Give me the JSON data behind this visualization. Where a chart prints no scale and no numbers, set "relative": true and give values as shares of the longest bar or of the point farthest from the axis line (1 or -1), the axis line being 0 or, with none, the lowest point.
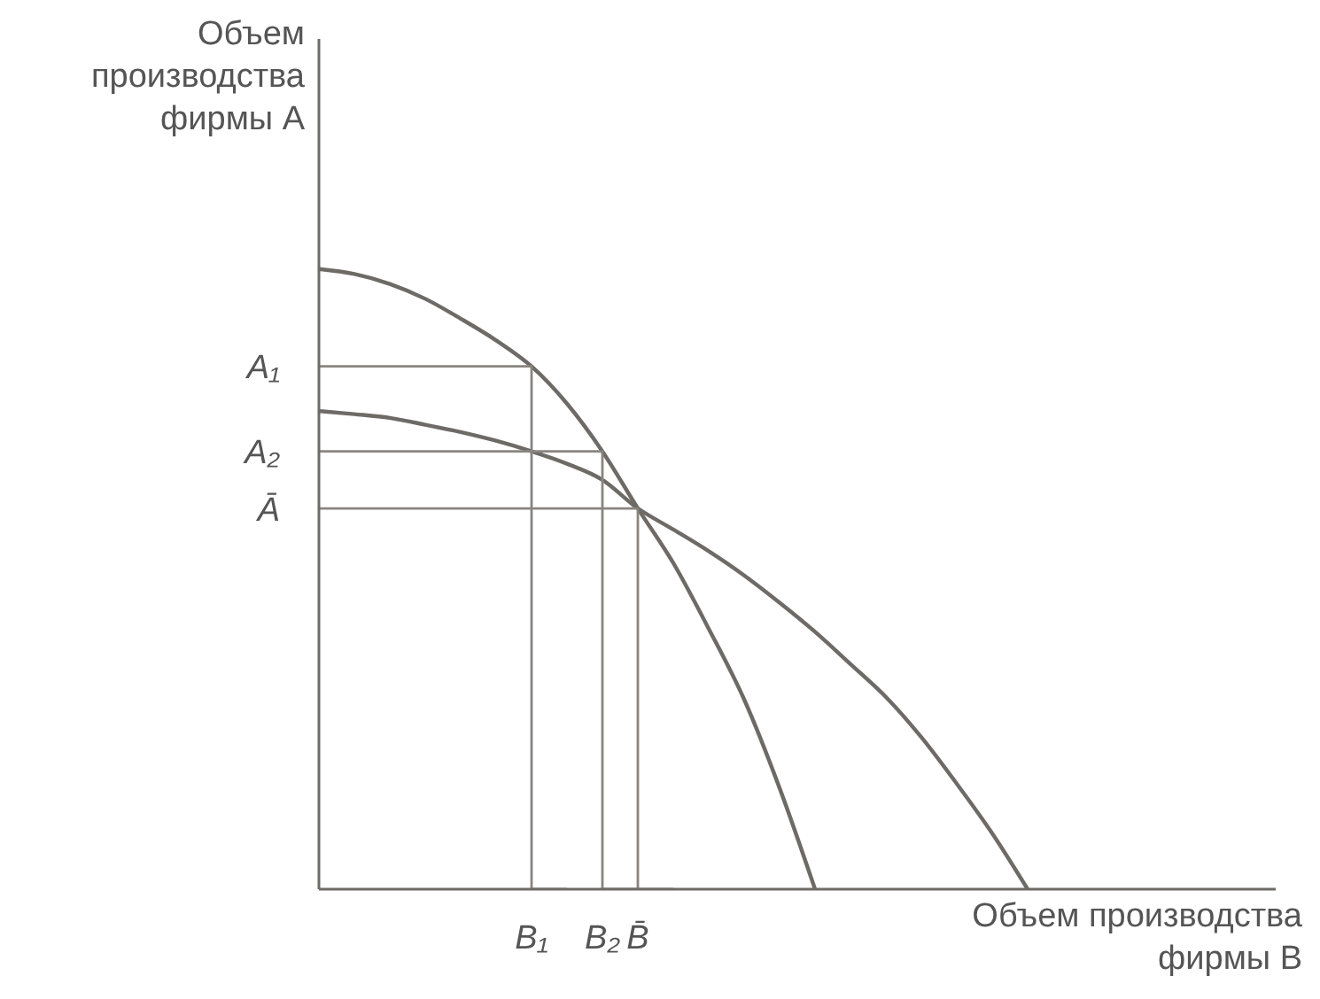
{
  "chart_data": {
    "type": "line",
    "relative": true,
    "xlabel": "Объем производства фирмы B",
    "ylabel": "Объем производства фирмы A",
    "categories": [
      null,
      null,
      null,
      null,
      null,
      null,
      "B₁",
      null,
      "B₂",
      "B̄",
      null,
      null,
      null,
      null,
      null,
      null,
      null,
      null,
      null,
      null,
      null,
      null,
      null,
      null,
      null,
      null,
      null,
      null
    ],
    "annotations": [
      "A₁",
      "A₂",
      "Ā"
    ],
    "grid": false,
    "legend": false,
    "marker": "none",
    "line_style": "solid",
    "series": [
      {
        "color": "#6e6a66",
        "values": [
          1,
          0.992,
          0.976,
          0.952,
          0.92,
          0.885,
          0.843,
          0.783,
          0.706,
          0.614,
          0.526,
          0.42,
          0.306,
          0.163,
          0,
          null,
          null,
          null,
          null,
          null,
          null,
          null,
          null,
          null,
          null,
          null,
          null,
          null
        ]
      },
      {
        "color": "#6e6a66",
        "values": [
          0.771,
          0.766,
          0.76,
          0.749,
          0.737,
          0.723,
          0.706,
          0.686,
          0.66,
          0.614,
          0.58,
          0.545,
          0.506,
          0.462,
          0.415,
          0.363,
          0.31,
          0.245,
          0.17,
          0.09,
          0,
          null,
          null,
          null,
          null,
          null,
          null,
          null
        ]
      },
      {
        "type": "step",
        "color": "#8a8580",
        "values": [
          0.843,
          0.843,
          0.843,
          0.843,
          0.843,
          0.843,
          0.843,
          0,
          null,
          null,
          null,
          null,
          null,
          null,
          null,
          null,
          null,
          null,
          null,
          null,
          null,
          null,
          null,
          null,
          null,
          null,
          null,
          null
        ]
      },
      {
        "type": "step",
        "color": "#8a8580",
        "values": [
          0.706,
          0.706,
          0.706,
          0.706,
          0.706,
          0.706,
          0.706,
          0.706,
          0.706,
          0,
          null,
          null,
          null,
          null,
          null,
          null,
          null,
          null,
          null,
          null,
          null,
          null,
          null,
          null,
          null,
          null,
          null,
          null
        ]
      },
      {
        "type": "step",
        "color": "#8a8580",
        "values": [
          0.614,
          0.614,
          0.614,
          0.614,
          0.614,
          0.614,
          0.614,
          0.614,
          0.614,
          0.614,
          0,
          null,
          null,
          null,
          null,
          null,
          null,
          null,
          null,
          null,
          null,
          null,
          null,
          null,
          null,
          null,
          null,
          null
        ]
      }
    ]
  }
}
